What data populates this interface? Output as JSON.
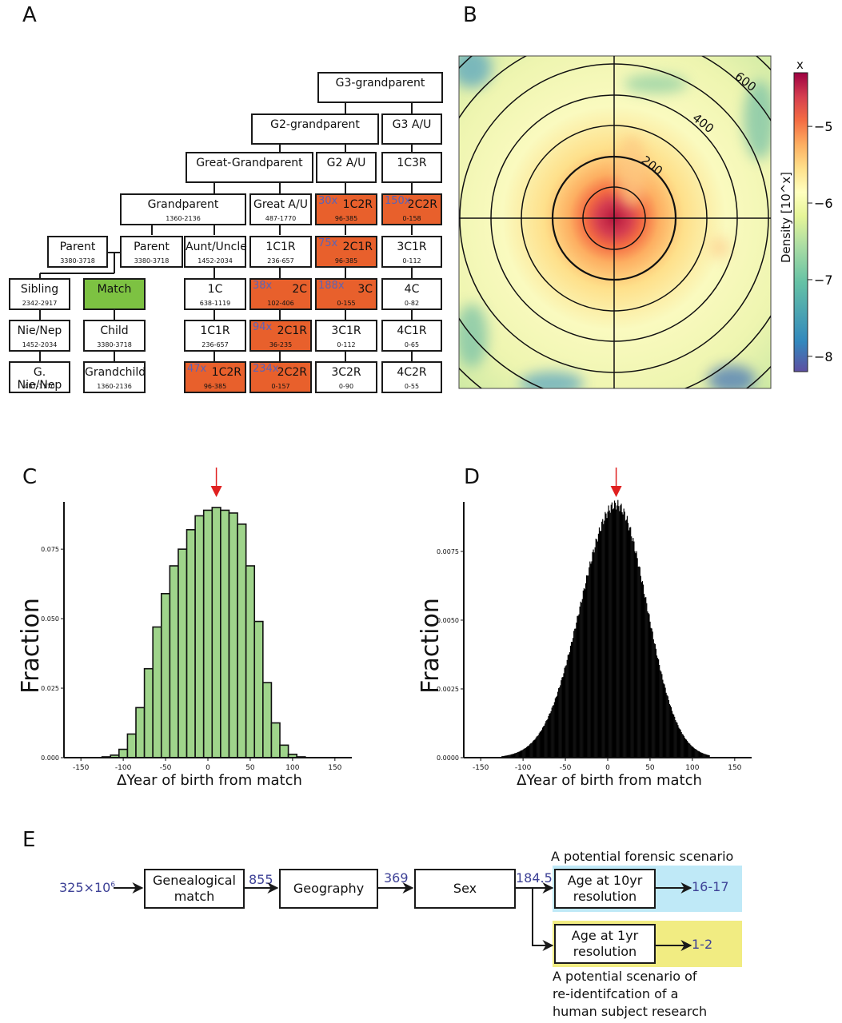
{
  "panels": {
    "A": "A",
    "B": "B",
    "C": "C",
    "D": "D",
    "E": "E"
  },
  "tree": {
    "nodes": [
      {
        "id": "g3gp",
        "label": "G3-grandparent",
        "range": "",
        "mult": "",
        "color": "white"
      },
      {
        "id": "g2gp",
        "label": "G2-grandparent",
        "range": "",
        "mult": "",
        "color": "white"
      },
      {
        "id": "g3au",
        "label": "G3 A/U",
        "range": "",
        "mult": "",
        "color": "white"
      },
      {
        "id": "ggp",
        "label": "Great-Grandparent",
        "range": "",
        "mult": "",
        "color": "white"
      },
      {
        "id": "g2au",
        "label": "G2 A/U",
        "range": "",
        "mult": "",
        "color": "white"
      },
      {
        "id": "c1c3r",
        "label": "1C3R",
        "range": "",
        "mult": "",
        "color": "white"
      },
      {
        "id": "gp",
        "label": "Grandparent",
        "range": "1360-2136",
        "mult": "",
        "color": "white"
      },
      {
        "id": "gau",
        "label": "Great A/U",
        "range": "487-1770",
        "mult": "",
        "color": "white"
      },
      {
        "id": "c1c2r_a",
        "label": "1C2R",
        "range": "96-385",
        "mult": "30x",
        "color": "orange"
      },
      {
        "id": "c2c2r_a",
        "label": "2C2R",
        "range": "0-158",
        "mult": "150x",
        "color": "orange"
      },
      {
        "id": "parent1",
        "label": "Parent",
        "range": "3380-3718",
        "mult": "",
        "color": "white"
      },
      {
        "id": "parent2",
        "label": "Parent",
        "range": "3380-3718",
        "mult": "",
        "color": "white"
      },
      {
        "id": "au",
        "label": "Aunt/Uncle",
        "range": "1452-2034",
        "mult": "",
        "color": "white"
      },
      {
        "id": "c1c1r_a",
        "label": "1C1R",
        "range": "236-657",
        "mult": "",
        "color": "white"
      },
      {
        "id": "c2c1r_a",
        "label": "2C1R",
        "range": "96-385",
        "mult": "75x",
        "color": "orange"
      },
      {
        "id": "c3c1r_a",
        "label": "3C1R",
        "range": "0-112",
        "mult": "",
        "color": "white"
      },
      {
        "id": "sibling",
        "label": "Sibling",
        "range": "2342-2917",
        "mult": "",
        "color": "white"
      },
      {
        "id": "match",
        "label": "Match",
        "range": "",
        "mult": "",
        "color": "green"
      },
      {
        "id": "c1c",
        "label": "1C",
        "range": "638-1119",
        "mult": "",
        "color": "white"
      },
      {
        "id": "c2c",
        "label": "2C",
        "range": "102-406",
        "mult": "38x",
        "color": "orange"
      },
      {
        "id": "c3c",
        "label": "3C",
        "range": "0-155",
        "mult": "188x",
        "color": "orange"
      },
      {
        "id": "c4c",
        "label": "4C",
        "range": "0-82",
        "mult": "",
        "color": "white"
      },
      {
        "id": "nienep",
        "label": "Nie/Nep",
        "range": "1452-2034",
        "mult": "",
        "color": "white"
      },
      {
        "id": "child",
        "label": "Child",
        "range": "3380-3718",
        "mult": "",
        "color": "white"
      },
      {
        "id": "c1c1r_b",
        "label": "1C1R",
        "range": "236-657",
        "mult": "",
        "color": "white"
      },
      {
        "id": "c2c1r_b",
        "label": "2C1R",
        "range": "36-235",
        "mult": "94x",
        "color": "orange"
      },
      {
        "id": "c3c1r_b",
        "label": "3C1R",
        "range": "0-112",
        "mult": "",
        "color": "white"
      },
      {
        "id": "c4c1r",
        "label": "4C1R",
        "range": "0-65",
        "mult": "",
        "color": "white"
      },
      {
        "id": "gnienep",
        "label": "G. Nie/Nep",
        "range": "487-1770",
        "mult": "",
        "color": "white"
      },
      {
        "id": "grandchild",
        "label": "Grandchild",
        "range": "1360-2136",
        "mult": "",
        "color": "white"
      },
      {
        "id": "c1c2r_b",
        "label": "1C2R",
        "range": "96-385",
        "mult": "47x",
        "color": "orange"
      },
      {
        "id": "c2c2r_b",
        "label": "2C2R",
        "range": "0-157",
        "mult": "234x",
        "color": "orange"
      },
      {
        "id": "c3c2r",
        "label": "3C2R",
        "range": "0-90",
        "mult": "",
        "color": "white"
      },
      {
        "id": "c4c2r",
        "label": "4C2R",
        "range": "0-55",
        "mult": "",
        "color": "white"
      }
    ],
    "colors": {
      "orange": "#e8602c",
      "green": "#7dc242",
      "mult_text": "#5a63b8"
    }
  },
  "chart_data": [
    {
      "panel": "B",
      "type": "heatmap",
      "title": "",
      "description": "Polar density map with concentric distance rings",
      "ring_labels": [
        "200",
        "400",
        "600"
      ],
      "colorbar": {
        "title": "x",
        "label": "Density [10^x]",
        "ticks": [
          "−5",
          "−6",
          "−7",
          "−8"
        ],
        "tick_values": [
          -5,
          -6,
          -7,
          -8
        ],
        "range": [
          -8.2,
          -4.3
        ],
        "colormap": [
          "#5e4fa2",
          "#3288bd",
          "#66c2a5",
          "#abdda4",
          "#e6f598",
          "#ffffbf",
          "#fee08b",
          "#fdae61",
          "#f46d43",
          "#d53e4f",
          "#9e0142"
        ]
      }
    },
    {
      "panel": "C",
      "type": "bar",
      "title": "",
      "xlabel": "ΔYear of birth from match",
      "ylabel": "Fraction",
      "xlim": [
        -170,
        170
      ],
      "ylim": [
        0,
        0.092
      ],
      "xticks": [
        "-150",
        "-100",
        "-50",
        "0",
        "50",
        "100",
        "150"
      ],
      "xtick_values": [
        -150,
        -100,
        -50,
        0,
        50,
        100,
        150
      ],
      "yticks": [
        "0.000",
        "0.025",
        "0.050",
        "0.075"
      ],
      "ytick_values": [
        0,
        0.025,
        0.05,
        0.075
      ],
      "bin_width": 10,
      "x": [
        -120,
        -110,
        -100,
        -90,
        -80,
        -70,
        -60,
        -50,
        -40,
        -30,
        -20,
        -10,
        0,
        10,
        20,
        30,
        40,
        50,
        60,
        70,
        80,
        90,
        100,
        110
      ],
      "values": [
        0.0003,
        0.0009,
        0.003,
        0.0085,
        0.018,
        0.032,
        0.047,
        0.059,
        0.069,
        0.075,
        0.082,
        0.087,
        0.089,
        0.09,
        0.089,
        0.088,
        0.084,
        0.069,
        0.049,
        0.027,
        0.0125,
        0.0045,
        0.0012,
        0.0003
      ],
      "bar_color": "#9fd48b",
      "annotation": {
        "type": "arrow",
        "x": 10,
        "color": "#e02020"
      }
    },
    {
      "panel": "D",
      "type": "bar",
      "title": "",
      "xlabel": "ΔYear of birth from match",
      "ylabel": "Fraction",
      "xlim": [
        -170,
        170
      ],
      "ylim": [
        0,
        0.0093
      ],
      "xticks": [
        "-150",
        "-100",
        "-50",
        "0",
        "50",
        "100",
        "150"
      ],
      "xtick_values": [
        -150,
        -100,
        -50,
        0,
        50,
        100,
        150
      ],
      "yticks": [
        "0.0000",
        "0.0025",
        "0.0050",
        "0.0075"
      ],
      "ytick_values": [
        0,
        0.0025,
        0.005,
        0.0075
      ],
      "bin_width": 1,
      "distribution": {
        "peak_x": 10,
        "peak_value": 0.0092,
        "support": [
          -125,
          120
        ]
      },
      "bar_color": "#000000",
      "annotation": {
        "type": "arrow",
        "x": 10,
        "color": "#e02020"
      }
    }
  ],
  "flow": {
    "start": "325×10",
    "start_exp": "6",
    "steps": [
      {
        "label": "Genealogical\nmatch",
        "out": "855"
      },
      {
        "label": "Geography",
        "out": "369"
      },
      {
        "label": "Sex",
        "out": "184.5"
      }
    ],
    "branches": [
      {
        "label": "Age at 10yr\nresolution",
        "result": "16-17",
        "note": "A potential forensic scenario",
        "bg": "#bfe9f7"
      },
      {
        "label": "Age at 1yr\nresolution",
        "result": "1-2",
        "note": "A potential scenario of re-identifcation of a human subject research",
        "bg": "#f1ec82"
      }
    ],
    "num_color": "#3d4196"
  }
}
